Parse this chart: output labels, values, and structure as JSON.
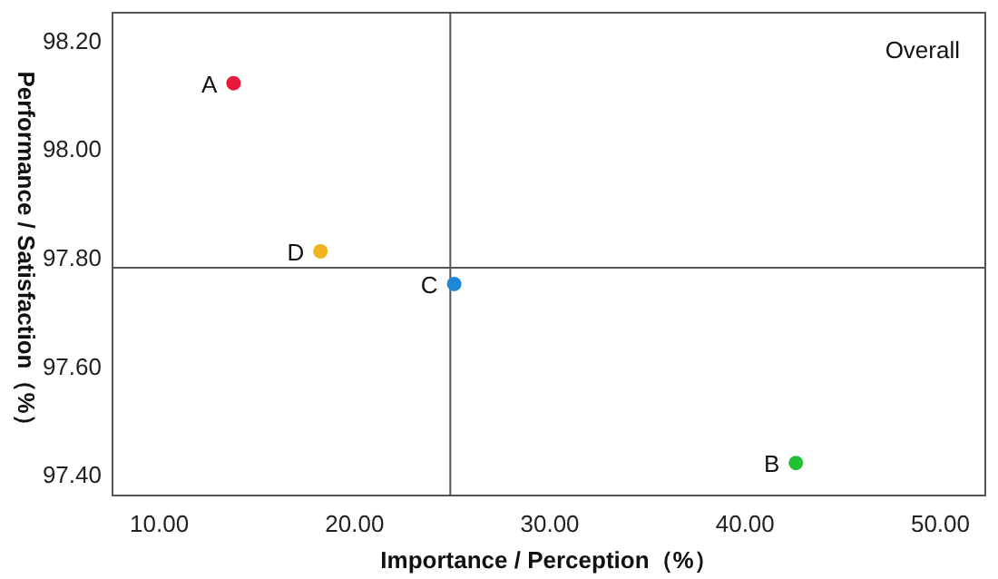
{
  "chart_data": {
    "type": "scatter",
    "xlabel": "Importance / Perception（%）",
    "ylabel": "Performance / Satisfaction（%）",
    "annotations": [
      "Overall"
    ],
    "xlim": [
      7.6,
      52.3
    ],
    "ylim": [
      97.36,
      98.25
    ],
    "xticks": [
      {
        "value": 10,
        "label": "10.00"
      },
      {
        "value": 20,
        "label": "20.00"
      },
      {
        "value": 30,
        "label": "30.00"
      },
      {
        "value": 40,
        "label": "40.00"
      },
      {
        "value": 50,
        "label": "50.00"
      }
    ],
    "yticks": [
      {
        "value": 97.4,
        "label": "97.40"
      },
      {
        "value": 97.6,
        "label": "97.60"
      },
      {
        "value": 97.8,
        "label": "97.80"
      },
      {
        "value": 98.0,
        "label": "98.00"
      },
      {
        "value": 98.2,
        "label": "98.20"
      }
    ],
    "ref_lines": [
      {
        "axis": "x",
        "value": 24.9,
        "label": null
      },
      {
        "axis": "y",
        "value": 97.78,
        "label": null
      }
    ],
    "series": [
      {
        "name": "A",
        "color": "#e8193c",
        "x": [
          13.8
        ],
        "values": [
          98.12
        ]
      },
      {
        "name": "B",
        "color": "#22c133",
        "x": [
          42.6
        ],
        "values": [
          97.42
        ]
      },
      {
        "name": "C",
        "color": "#1e88d8",
        "x": [
          25.1
        ],
        "values": [
          97.75
        ]
      },
      {
        "name": "D",
        "color": "#f0b51e",
        "x": [
          18.25
        ],
        "values": [
          97.81
        ]
      }
    ]
  }
}
